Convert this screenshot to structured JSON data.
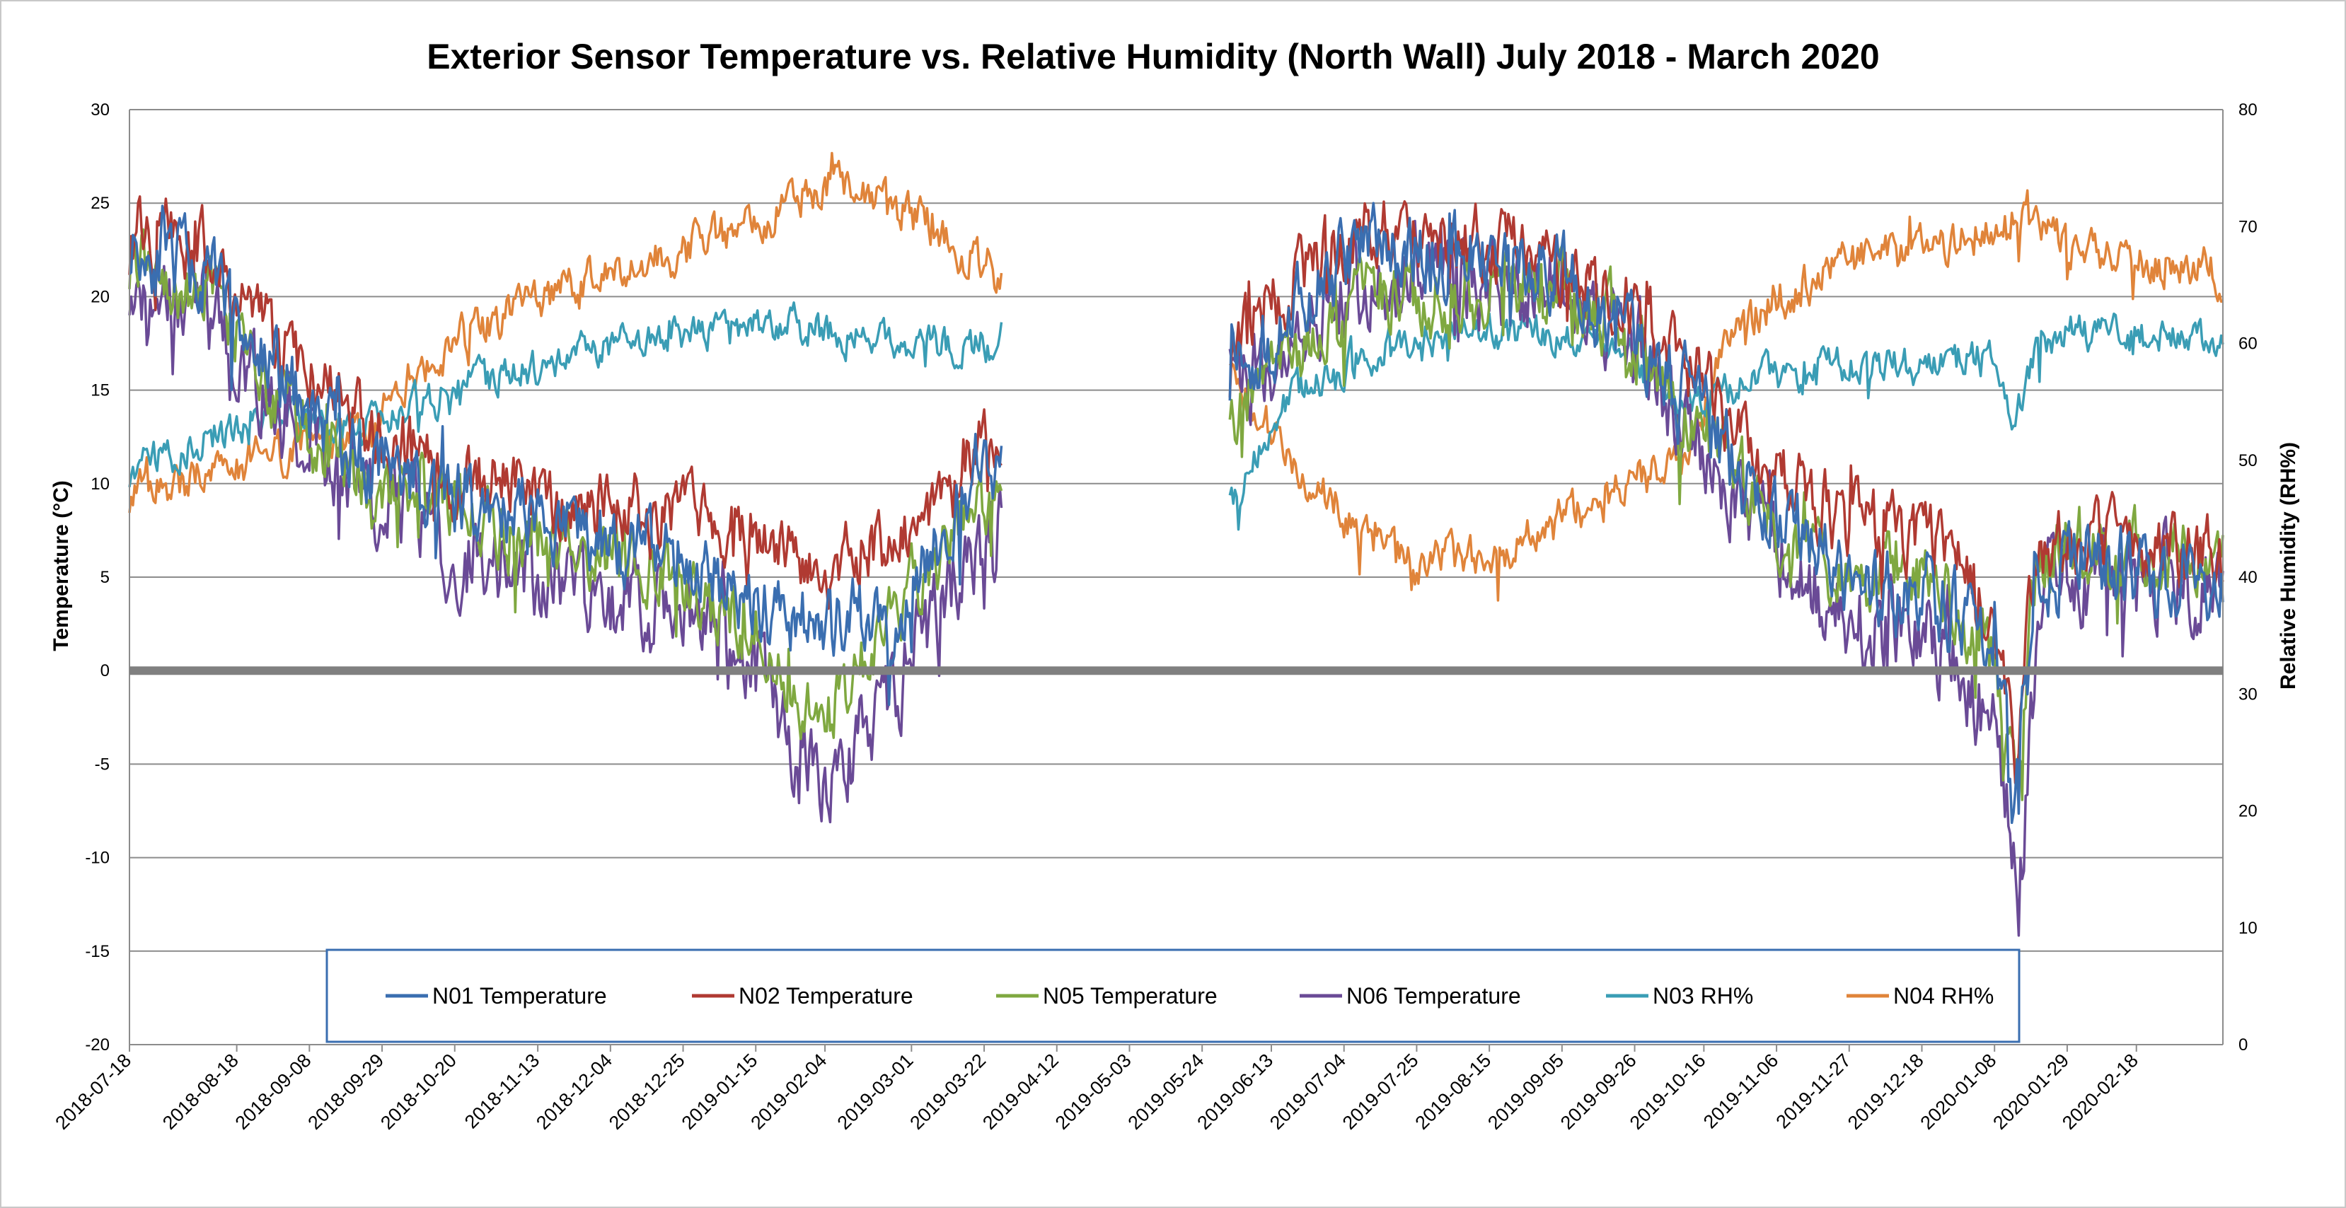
{
  "chart_data": {
    "type": "line",
    "title": "Exterior Sensor Temperature vs. Relative Humidity (North Wall) July 2018 - March 2020",
    "ylabel": "Temperature (°C)",
    "y2label": "Relative Humidity (RH%)",
    "ylim": [
      -20,
      30
    ],
    "y2lim": [
      0,
      80
    ],
    "yticks": [
      "30",
      "25",
      "20",
      "15",
      "10",
      "5",
      "0",
      "-5",
      "-10",
      "-15",
      "-20"
    ],
    "y2ticks": [
      "80",
      "70",
      "60",
      "50",
      "40",
      "30",
      "20",
      "10",
      "0"
    ],
    "x_dates": [
      "2018-07-18",
      "2018-08-18",
      "2018-09-08",
      "2018-09-29",
      "2018-10-20",
      "2018-11-13",
      "2018-12-04",
      "2018-12-25",
      "2019-01-15",
      "2019-02-04",
      "2019-03-01",
      "2019-03-22",
      "2019-04-12",
      "2019-05-03",
      "2019-05-24",
      "2019-06-13",
      "2019-07-04",
      "2019-07-25",
      "2019-08-15",
      "2019-09-05",
      "2019-09-26",
      "2019-10-16",
      "2019-11-06",
      "2019-11-27",
      "2019-12-18",
      "2020-01-08",
      "2020-01-29",
      "2020-02-18"
    ],
    "x_range": [
      "2018-07-18",
      "2020-03-14"
    ],
    "gap": [
      "2019-03-27",
      "2019-06-01"
    ],
    "legend": "bottom",
    "series": [
      {
        "name": "N01 Temperature",
        "axis": "left",
        "color": "#3A6EB0",
        "noise": 1.8,
        "seed": 11,
        "points": [
          [
            "2018-07-18",
            23
          ],
          [
            "2018-08-10",
            21
          ],
          [
            "2018-09-01",
            15
          ],
          [
            "2018-09-25",
            11
          ],
          [
            "2018-10-25",
            9
          ],
          [
            "2018-11-25",
            7.5
          ],
          [
            "2018-12-25",
            6
          ],
          [
            "2019-01-15",
            4
          ],
          [
            "2019-02-04",
            2
          ],
          [
            "2019-02-25",
            3
          ],
          [
            "2019-03-15",
            9
          ],
          [
            "2019-03-26",
            12
          ],
          [
            "2019-06-01",
            16
          ],
          [
            "2019-06-20",
            19
          ],
          [
            "2019-07-10",
            23
          ],
          [
            "2019-08-05",
            22
          ],
          [
            "2019-08-30",
            22
          ],
          [
            "2019-09-20",
            19
          ],
          [
            "2019-10-10",
            15
          ],
          [
            "2019-11-01",
            9
          ],
          [
            "2019-11-25",
            5
          ],
          [
            "2019-12-20",
            4
          ],
          [
            "2020-01-08",
            1
          ],
          [
            "2020-01-14",
            -8
          ],
          [
            "2020-01-20",
            5
          ],
          [
            "2020-02-01",
            6
          ],
          [
            "2020-03-14",
            5
          ]
        ]
      },
      {
        "name": "N02 Temperature",
        "axis": "left",
        "color": "#B03A32",
        "noise": 1.6,
        "seed": 23,
        "points": [
          [
            "2018-07-18",
            24
          ],
          [
            "2018-08-10",
            22
          ],
          [
            "2018-09-01",
            17
          ],
          [
            "2018-09-25",
            13
          ],
          [
            "2018-10-25",
            10
          ],
          [
            "2018-11-25",
            9
          ],
          [
            "2018-12-25",
            8
          ],
          [
            "2019-01-15",
            8
          ],
          [
            "2019-02-04",
            5
          ],
          [
            "2019-02-25",
            7
          ],
          [
            "2019-03-15",
            11
          ],
          [
            "2019-03-26",
            13
          ],
          [
            "2019-06-01",
            17
          ],
          [
            "2019-06-20",
            21
          ],
          [
            "2019-07-10",
            24
          ],
          [
            "2019-08-05",
            23
          ],
          [
            "2019-08-30",
            22
          ],
          [
            "2019-09-20",
            20
          ],
          [
            "2019-10-10",
            17
          ],
          [
            "2019-11-01",
            11
          ],
          [
            "2019-11-25",
            8
          ],
          [
            "2019-12-20",
            7
          ],
          [
            "2020-01-08",
            3
          ],
          [
            "2020-01-14",
            -4
          ],
          [
            "2020-01-20",
            6
          ],
          [
            "2020-02-01",
            7
          ],
          [
            "2020-03-14",
            6
          ]
        ]
      },
      {
        "name": "N05 Temperature",
        "axis": "left",
        "color": "#7FA840",
        "noise": 1.6,
        "seed": 37,
        "points": [
          [
            "2018-07-18",
            22
          ],
          [
            "2018-08-10",
            20
          ],
          [
            "2018-09-01",
            14
          ],
          [
            "2018-09-25",
            10
          ],
          [
            "2018-10-25",
            8
          ],
          [
            "2018-11-25",
            6
          ],
          [
            "2018-12-25",
            5
          ],
          [
            "2019-01-15",
            2
          ],
          [
            "2019-02-04",
            -3
          ],
          [
            "2019-02-25",
            3
          ],
          [
            "2019-03-15",
            8
          ],
          [
            "2019-03-26",
            10
          ],
          [
            "2019-06-01",
            14
          ],
          [
            "2019-06-20",
            17
          ],
          [
            "2019-07-10",
            20
          ],
          [
            "2019-08-05",
            20
          ],
          [
            "2019-08-30",
            21
          ],
          [
            "2019-09-20",
            19
          ],
          [
            "2019-10-10",
            14
          ],
          [
            "2019-11-01",
            9
          ],
          [
            "2019-11-25",
            5
          ],
          [
            "2019-12-20",
            5
          ],
          [
            "2020-01-08",
            1
          ],
          [
            "2020-01-14",
            -6
          ],
          [
            "2020-01-20",
            6
          ],
          [
            "2020-02-01",
            7
          ],
          [
            "2020-03-14",
            6
          ]
        ]
      },
      {
        "name": "N06 Temperature",
        "axis": "left",
        "color": "#6A4A96",
        "noise": 2.0,
        "seed": 51,
        "points": [
          [
            "2018-07-18",
            21
          ],
          [
            "2018-08-10",
            19
          ],
          [
            "2018-09-01",
            13
          ],
          [
            "2018-09-25",
            9
          ],
          [
            "2018-10-25",
            6
          ],
          [
            "2018-11-25",
            4
          ],
          [
            "2018-12-25",
            3
          ],
          [
            "2019-01-15",
            0
          ],
          [
            "2019-02-04",
            -7
          ],
          [
            "2019-02-20",
            -2
          ],
          [
            "2019-03-15",
            5
          ],
          [
            "2019-03-26",
            8
          ],
          [
            "2019-06-01",
            15
          ],
          [
            "2019-06-20",
            18
          ],
          [
            "2019-07-10",
            21
          ],
          [
            "2019-08-05",
            21
          ],
          [
            "2019-08-30",
            21
          ],
          [
            "2019-09-20",
            19
          ],
          [
            "2019-10-10",
            14
          ],
          [
            "2019-11-01",
            8
          ],
          [
            "2019-11-25",
            3
          ],
          [
            "2019-12-20",
            2
          ],
          [
            "2020-01-08",
            -3
          ],
          [
            "2020-01-15",
            -12
          ],
          [
            "2020-01-22",
            5
          ],
          [
            "2020-02-01",
            5
          ],
          [
            "2020-03-14",
            5
          ]
        ]
      },
      {
        "name": "N03 RH%",
        "axis": "right",
        "color": "#3A9DB5",
        "noise": 1.3,
        "seed": 67,
        "points": [
          [
            "2018-07-18",
            49
          ],
          [
            "2018-08-10",
            52
          ],
          [
            "2018-09-01",
            54
          ],
          [
            "2018-09-25",
            53
          ],
          [
            "2018-10-20",
            56
          ],
          [
            "2018-11-13",
            58
          ],
          [
            "2018-12-04",
            60
          ],
          [
            "2018-12-25",
            61
          ],
          [
            "2019-01-15",
            62
          ],
          [
            "2019-02-04",
            61
          ],
          [
            "2019-03-01",
            60
          ],
          [
            "2019-03-26",
            60
          ],
          [
            "2019-06-01",
            46
          ],
          [
            "2019-06-20",
            56
          ],
          [
            "2019-07-10",
            59
          ],
          [
            "2019-08-05",
            61
          ],
          [
            "2019-08-30",
            61
          ],
          [
            "2019-09-20",
            60
          ],
          [
            "2019-10-10",
            55
          ],
          [
            "2019-11-01",
            57
          ],
          [
            "2019-11-25",
            58
          ],
          [
            "2019-12-20",
            58
          ],
          [
            "2020-01-08",
            59
          ],
          [
            "2020-01-14",
            53
          ],
          [
            "2020-01-20",
            60
          ],
          [
            "2020-02-01",
            61
          ],
          [
            "2020-03-14",
            60
          ]
        ]
      },
      {
        "name": "N04 RH%",
        "axis": "right",
        "color": "#E0843A",
        "noise": 1.5,
        "seed": 83,
        "points": [
          [
            "2018-07-18",
            47
          ],
          [
            "2018-08-10",
            49
          ],
          [
            "2018-09-01",
            51
          ],
          [
            "2018-09-25",
            53
          ],
          [
            "2018-10-20",
            60
          ],
          [
            "2018-11-13",
            64
          ],
          [
            "2018-12-04",
            66
          ],
          [
            "2018-12-25",
            68
          ],
          [
            "2019-01-15",
            70
          ],
          [
            "2019-02-04",
            74
          ],
          [
            "2019-03-01",
            71
          ],
          [
            "2019-03-26",
            66
          ],
          [
            "2019-06-01",
            57
          ],
          [
            "2019-06-20",
            50
          ],
          [
            "2019-07-10",
            43
          ],
          [
            "2019-07-25",
            41
          ],
          [
            "2019-08-15",
            42
          ],
          [
            "2019-08-30",
            44
          ],
          [
            "2019-09-20",
            47
          ],
          [
            "2019-10-10",
            50
          ],
          [
            "2019-10-25",
            61
          ],
          [
            "2019-11-06",
            64
          ],
          [
            "2019-11-27",
            67
          ],
          [
            "2019-12-18",
            68
          ],
          [
            "2020-01-08",
            70
          ],
          [
            "2020-01-16",
            72
          ],
          [
            "2020-01-29",
            68
          ],
          [
            "2020-02-18",
            67
          ],
          [
            "2020-03-14",
            66
          ]
        ]
      }
    ]
  }
}
